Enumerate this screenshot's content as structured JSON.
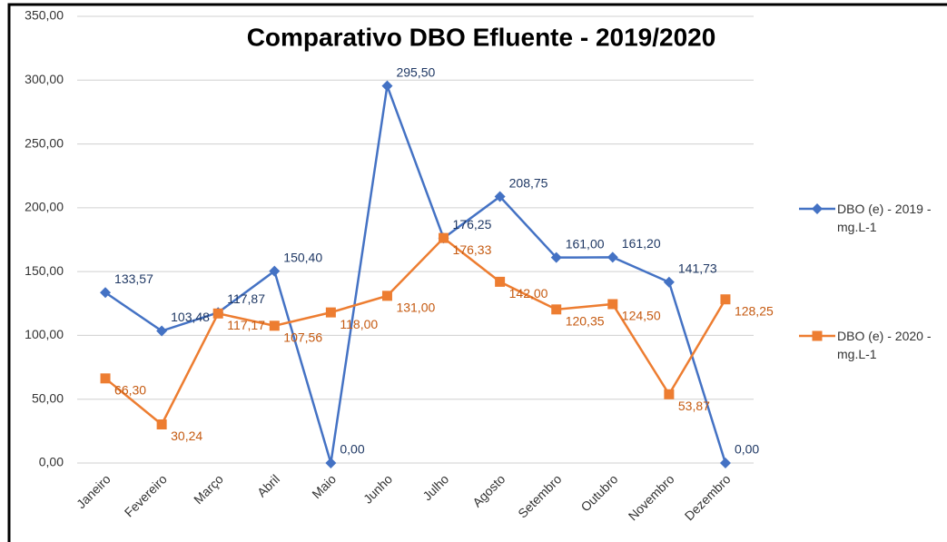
{
  "chart_data": {
    "type": "line",
    "title": "Comparativo DBO Efluente - 2019/2020",
    "categories": [
      "Janeiro",
      "Fevereiro",
      "Março",
      "Abril",
      "Maio",
      "Junho",
      "Julho",
      "Agosto",
      "Setembro",
      "Outubro",
      "Novembro",
      "Dezembro"
    ],
    "series": [
      {
        "name": "DBO (e) - 2019 - mg.L-1",
        "color": "#4472c4",
        "marker": "diamond",
        "values": [
          133.57,
          103.48,
          117.87,
          150.4,
          0,
          295.5,
          176.25,
          208.75,
          161.0,
          161.2,
          141.73,
          0
        ],
        "value_labels": [
          "133,57",
          "103,48",
          "117,87",
          "150,40",
          "0,00",
          "295,50",
          "176,25",
          "208,75",
          "161,00",
          "161,20",
          "141,73",
          "0,00"
        ]
      },
      {
        "name": "DBO (e) - 2020 - mg.L-1",
        "color": "#ed7d31",
        "marker": "square",
        "values": [
          66.3,
          30.24,
          117.17,
          107.56,
          118.0,
          131.0,
          176.33,
          142.0,
          120.35,
          124.5,
          53.87,
          128.25
        ],
        "value_labels": [
          "66,30",
          "30,24",
          "117,17",
          "107,56",
          "118,00",
          "131,00",
          "176,33",
          "142,00",
          "120,35",
          "124,50",
          "53,87",
          "128,25"
        ]
      }
    ],
    "ylim": [
      0,
      350
    ],
    "yticks": [
      {
        "value": 0,
        "label": "0,00"
      },
      {
        "value": 50,
        "label": "50,00"
      },
      {
        "value": 100,
        "label": "100,00"
      },
      {
        "value": 150,
        "label": "150,00"
      },
      {
        "value": 200,
        "label": "200,00"
      },
      {
        "value": 250,
        "label": "250,00"
      },
      {
        "value": 300,
        "label": "300,00"
      },
      {
        "value": 350,
        "label": "350,00"
      }
    ],
    "grid": true,
    "legend": "right"
  }
}
